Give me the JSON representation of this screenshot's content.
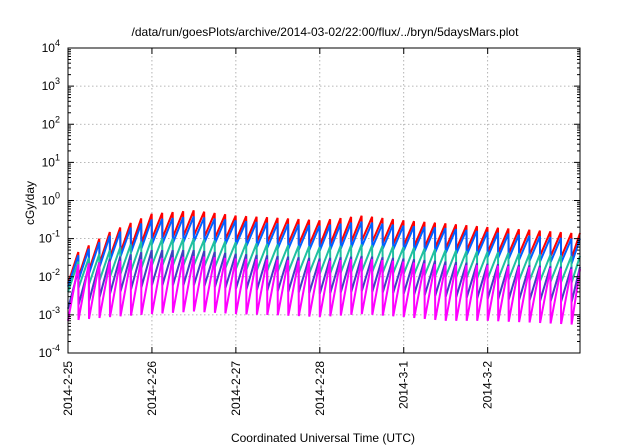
{
  "chart_data": {
    "type": "line",
    "title": "/data/run/goesPlots/archive/2014-03-02/22:00/flux/../bryn/5daysMars.plot",
    "xlabel": "Coordinated Universal Time (UTC)",
    "ylabel": "cGy/day",
    "yscale": "log",
    "ylim": [
      0.0001,
      10000
    ],
    "xlim": [
      0,
      6
    ],
    "grid": true,
    "legend": "none",
    "x_ticks": [
      {
        "value": 0,
        "label": "2014-2-25"
      },
      {
        "value": 1,
        "label": "2014-2-26"
      },
      {
        "value": 2,
        "label": "2014-2-27"
      },
      {
        "value": 3,
        "label": "2014-2-28"
      },
      {
        "value": 4,
        "label": "2014-3-1"
      },
      {
        "value": 5,
        "label": "2014-3-2"
      }
    ],
    "y_ticks": [
      {
        "base": "10",
        "exp": "-4"
      },
      {
        "base": "10",
        "exp": "-3"
      },
      {
        "base": "10",
        "exp": "-2"
      },
      {
        "base": "10",
        "exp": "-1"
      },
      {
        "base": "10",
        "exp": "0"
      },
      {
        "base": "10",
        "exp": "1"
      },
      {
        "base": "10",
        "exp": "2"
      },
      {
        "base": "10",
        "exp": "3"
      },
      {
        "base": "10",
        "exp": "4"
      }
    ],
    "sawtooth_period_days": 0.125,
    "series": [
      {
        "color": "#ff0000",
        "peaks": [
          [
            0.0,
            0.03
          ],
          [
            0.5,
            0.15
          ],
          [
            1.0,
            0.45
          ],
          [
            1.5,
            0.55
          ],
          [
            2.0,
            0.4
          ],
          [
            2.5,
            0.35
          ],
          [
            3.0,
            0.3
          ],
          [
            3.5,
            0.4
          ],
          [
            4.0,
            0.3
          ],
          [
            4.5,
            0.25
          ],
          [
            5.0,
            0.2
          ],
          [
            5.5,
            0.17
          ],
          [
            6.0,
            0.14
          ]
        ],
        "depth": 0.22
      },
      {
        "color": "#0060ff",
        "peaks": [
          [
            0.0,
            0.025
          ],
          [
            0.5,
            0.12
          ],
          [
            1.0,
            0.32
          ],
          [
            1.5,
            0.38
          ],
          [
            2.0,
            0.3
          ],
          [
            2.5,
            0.25
          ],
          [
            3.0,
            0.22
          ],
          [
            3.5,
            0.28
          ],
          [
            4.0,
            0.22
          ],
          [
            4.5,
            0.19
          ],
          [
            5.0,
            0.15
          ],
          [
            5.5,
            0.12
          ],
          [
            6.0,
            0.1
          ]
        ],
        "depth": 0.22
      },
      {
        "color": "#20c0a0",
        "peaks": [
          [
            0.0,
            0.02
          ],
          [
            0.5,
            0.05
          ],
          [
            1.0,
            0.1
          ],
          [
            1.5,
            0.1
          ],
          [
            2.0,
            0.08
          ],
          [
            2.5,
            0.07
          ],
          [
            3.0,
            0.06
          ],
          [
            3.5,
            0.07
          ],
          [
            4.0,
            0.06
          ],
          [
            4.5,
            0.05
          ],
          [
            5.0,
            0.045
          ],
          [
            5.5,
            0.04
          ],
          [
            6.0,
            0.035
          ]
        ],
        "depth": 0.2
      },
      {
        "color": "#4040c0",
        "peaks": [
          [
            0.0,
            0.012
          ],
          [
            0.5,
            0.03
          ],
          [
            1.0,
            0.05
          ],
          [
            1.5,
            0.05
          ],
          [
            2.0,
            0.04
          ],
          [
            2.5,
            0.035
          ],
          [
            3.0,
            0.03
          ],
          [
            3.5,
            0.035
          ],
          [
            4.0,
            0.03
          ],
          [
            4.5,
            0.025
          ],
          [
            5.0,
            0.022
          ],
          [
            5.5,
            0.02
          ],
          [
            6.0,
            0.018
          ]
        ],
        "depth": 0.12
      },
      {
        "color": "#ff00ff",
        "peaks": [
          [
            0.0,
            0.02
          ],
          [
            0.5,
            0.025
          ],
          [
            1.0,
            0.03
          ],
          [
            1.5,
            0.035
          ],
          [
            2.0,
            0.03
          ],
          [
            2.5,
            0.028
          ],
          [
            3.0,
            0.025
          ],
          [
            3.5,
            0.03
          ],
          [
            4.0,
            0.025
          ],
          [
            4.5,
            0.02
          ],
          [
            5.0,
            0.02
          ],
          [
            5.5,
            0.018
          ],
          [
            6.0,
            0.016
          ]
        ],
        "depth": 0.035
      }
    ]
  }
}
